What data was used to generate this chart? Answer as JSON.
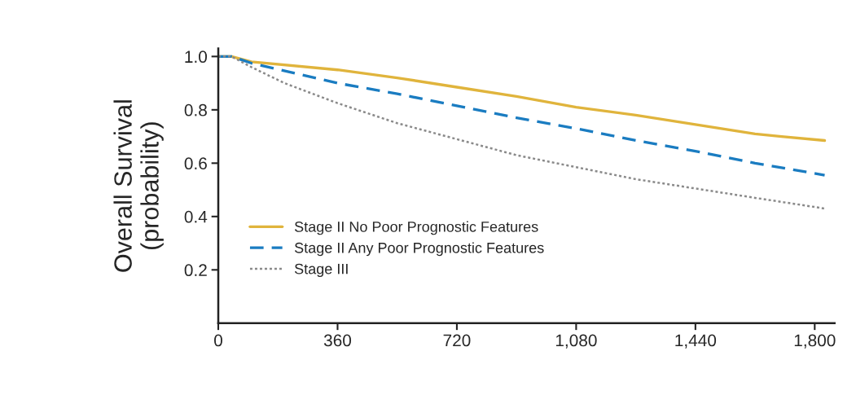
{
  "chart_data": {
    "type": "line",
    "ylabel": "Overall Survival\n(probability)",
    "xlim": [
      0,
      1860
    ],
    "ylim": [
      0,
      1.03
    ],
    "xticks": [
      0,
      360,
      720,
      {
        "value": 1080,
        "label": "1,080"
      },
      {
        "value": 1440,
        "label": "1,440"
      },
      {
        "value": 1800,
        "label": "1,800"
      }
    ],
    "yticks": [
      0.2,
      0.4,
      0.6,
      0.8,
      {
        "value": 1.0,
        "label": "1.0"
      }
    ],
    "grid": false,
    "legend": "bottom left",
    "series": [
      {
        "name": "Stage II No Poor Prognostic Features",
        "color": "#e0b43c",
        "line_style": "solid",
        "x": [
          0,
          40,
          100,
          360,
          540,
          720,
          900,
          1080,
          1260,
          1440,
          1620,
          1700,
          1830
        ],
        "values": [
          1.0,
          1.0,
          0.98,
          0.95,
          0.92,
          0.885,
          0.85,
          0.81,
          0.78,
          0.745,
          0.71,
          0.7,
          0.685
        ]
      },
      {
        "name": "Stage II Any Poor Prognostic Features",
        "color": "#1a7cc1",
        "line_style": "dashed",
        "x": [
          0,
          40,
          100,
          360,
          540,
          720,
          900,
          1080,
          1260,
          1440,
          1620,
          1830
        ],
        "values": [
          1.0,
          1.0,
          0.975,
          0.9,
          0.86,
          0.815,
          0.77,
          0.73,
          0.685,
          0.645,
          0.6,
          0.555
        ]
      },
      {
        "name": "Stage III",
        "color": "#8a8a8a",
        "line_style": "dotted",
        "x": [
          0,
          40,
          100,
          200,
          360,
          540,
          720,
          900,
          1080,
          1260,
          1440,
          1620,
          1830
        ],
        "values": [
          1.0,
          1.0,
          0.96,
          0.9,
          0.825,
          0.75,
          0.69,
          0.63,
          0.585,
          0.54,
          0.505,
          0.47,
          0.43
        ]
      }
    ]
  }
}
